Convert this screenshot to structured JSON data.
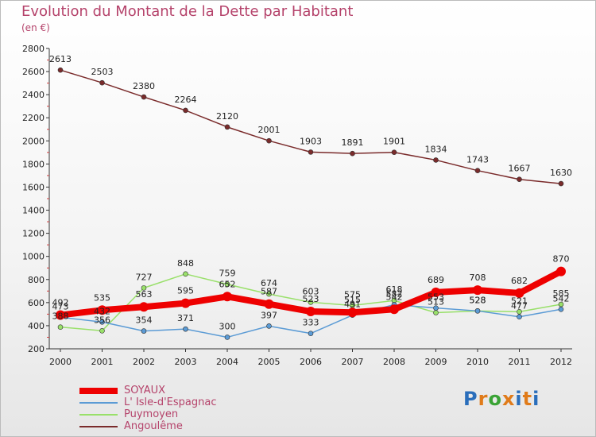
{
  "title": "Evolution du Montant de la Dette par Habitant",
  "subtitle": "(en €)",
  "logo_text": "Proxiti",
  "chart_data": {
    "type": "line",
    "x": [
      "2000",
      "2001",
      "2002",
      "2003",
      "2004",
      "2005",
      "2006",
      "2007",
      "2008",
      "2009",
      "2010",
      "2011",
      "2012"
    ],
    "ylim": [
      200,
      2800
    ],
    "yticks": [
      200,
      400,
      600,
      800,
      1000,
      1200,
      1400,
      1600,
      1800,
      2000,
      2200,
      2400,
      2600,
      2800
    ],
    "grid": false,
    "legend_position": "bottom-left",
    "series": [
      {
        "name": "SOYAUX",
        "color": "#ee0000",
        "values": [
          492,
          535,
          563,
          595,
          652,
          587,
          523,
          515,
          542,
          689,
          708,
          682,
          870
        ]
      },
      {
        "name": "L' Isle-d'Espagnac",
        "color": "#5b9bd5",
        "values": [
          473,
          432,
          354,
          371,
          300,
          397,
          333,
          491,
          582,
          553,
          528,
          477,
          542
        ]
      },
      {
        "name": "Puymoyen",
        "color": "#99e06a",
        "values": [
          388,
          356,
          727,
          848,
          759,
          674,
          603,
          575,
          618,
          513,
          528,
          521,
          585
        ]
      },
      {
        "name": "Angoulême",
        "color": "#7a2b2b",
        "values": [
          2613,
          2503,
          2380,
          2264,
          2120,
          2001,
          1903,
          1891,
          1901,
          1834,
          1743,
          1667,
          1630
        ]
      }
    ]
  }
}
